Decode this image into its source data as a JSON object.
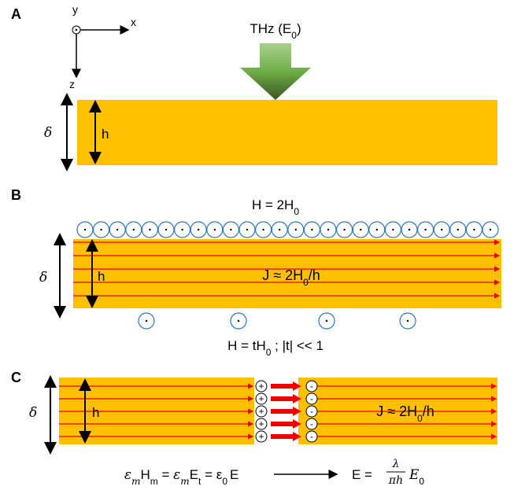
{
  "panels": {
    "a": {
      "label": "A",
      "axes": {
        "y": "y",
        "x": "x",
        "z": "z"
      },
      "source": [
        "THz (E",
        "0",
        ")"
      ],
      "delta": "δ",
      "h": "h"
    },
    "b": {
      "label": "B",
      "top_field": [
        "H = 2H",
        "0"
      ],
      "current": [
        "J ≈ 2H",
        "0",
        "/h"
      ],
      "bottom_field": [
        "H = tH",
        "0",
        " ; |t| << 1"
      ],
      "delta": "δ",
      "h": "h"
    },
    "c": {
      "label": "C",
      "delta": "δ",
      "h": "h",
      "current": [
        "J ≈ 2H",
        "0",
        "/h"
      ],
      "plus": "+",
      "minus": "-",
      "boundary": [
        "ε",
        "m",
        "H",
        "m",
        " = ",
        "ε",
        "m",
        "E",
        "t",
        " = ε",
        "0",
        "E"
      ],
      "result": [
        "E = ",
        "λ",
        "πh",
        "E",
        "0"
      ]
    }
  }
}
